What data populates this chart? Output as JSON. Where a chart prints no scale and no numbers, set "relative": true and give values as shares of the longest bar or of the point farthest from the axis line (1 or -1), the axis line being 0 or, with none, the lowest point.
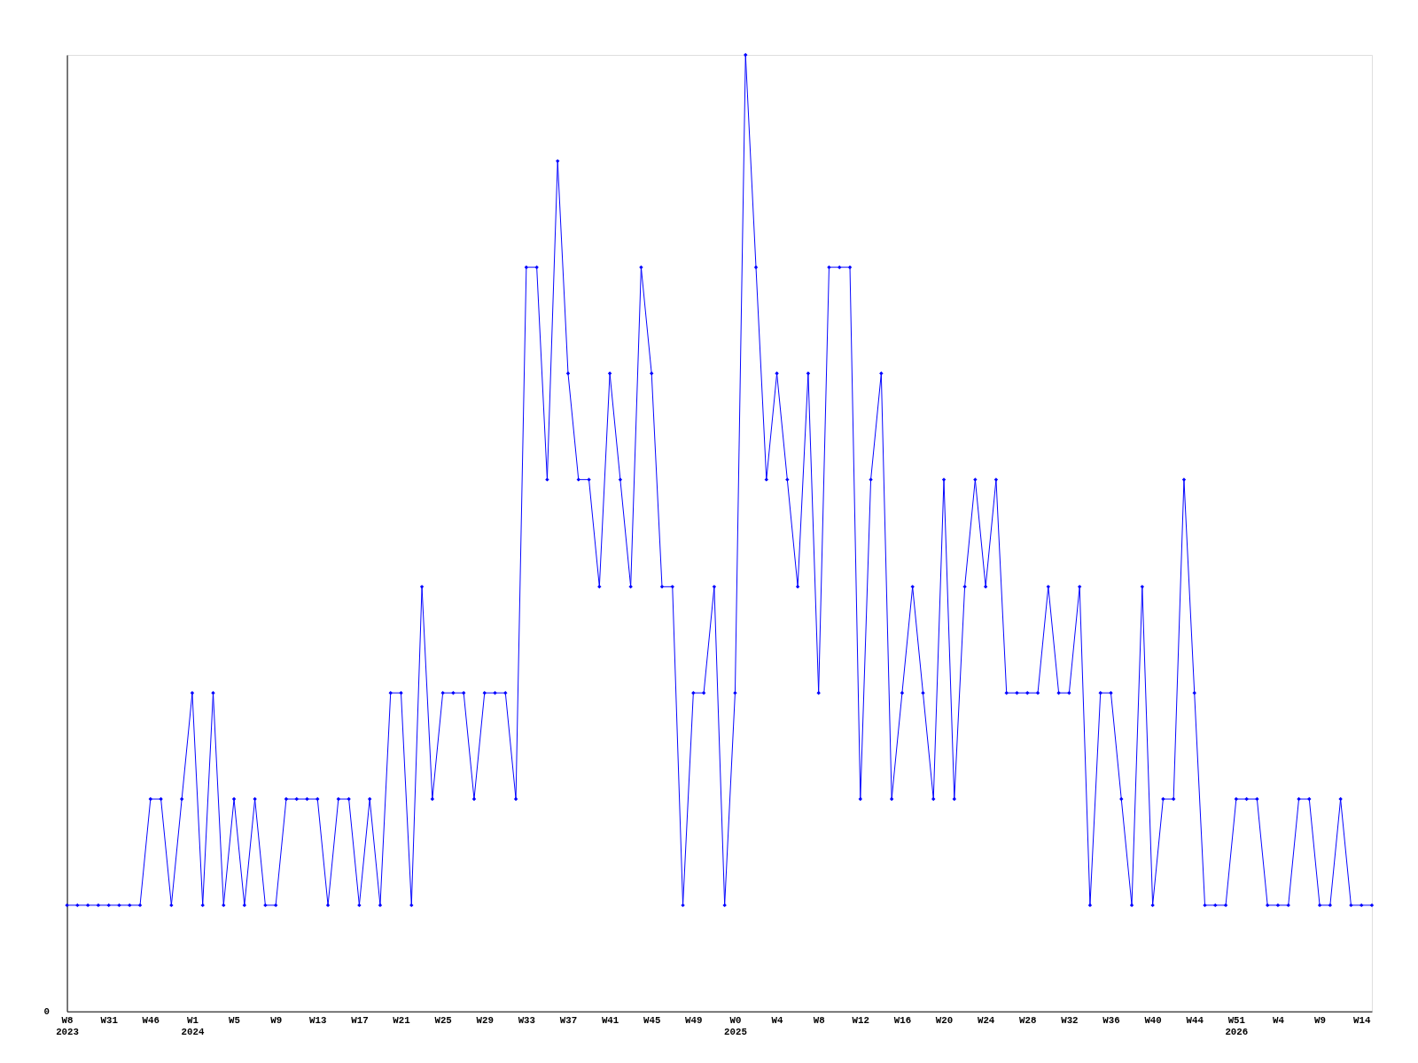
{
  "chart_data": {
    "type": "line",
    "relative": true,
    "marker": "diamond",
    "line_style": "solid",
    "grid": false,
    "categories": [
      "W8\n2023",
      null,
      null,
      null,
      "W31",
      null,
      null,
      null,
      "W46",
      null,
      null,
      null,
      "W1\n2024",
      null,
      null,
      null,
      "W5",
      null,
      null,
      null,
      "W9",
      null,
      null,
      null,
      "W13",
      null,
      null,
      null,
      "W17",
      null,
      null,
      null,
      "W21",
      null,
      null,
      null,
      "W25",
      null,
      null,
      null,
      "W29",
      null,
      null,
      null,
      "W33",
      null,
      null,
      null,
      "W37",
      null,
      null,
      null,
      "W41",
      null,
      null,
      null,
      "W45",
      null,
      null,
      null,
      "W49",
      null,
      null,
      null,
      "W0\n2025",
      null,
      null,
      null,
      "W4",
      null,
      null,
      null,
      "W8",
      null,
      null,
      null,
      "W12",
      null,
      null,
      null,
      "W16",
      null,
      null,
      null,
      "W20",
      null,
      null,
      null,
      "W24",
      null,
      null,
      null,
      "W28",
      null,
      null,
      null,
      "W32",
      null,
      null,
      null,
      "W36",
      null,
      null,
      null,
      "W40",
      null,
      null,
      null,
      "W44",
      null,
      null,
      null,
      "W51\n2026",
      null,
      null,
      null,
      "W4",
      null,
      null,
      null,
      "W9",
      null,
      null,
      null,
      "W14",
      null
    ],
    "series": [
      {
        "color": "#0000ff",
        "values": [
          0.111,
          0.111,
          0.111,
          0.111,
          0.111,
          0.111,
          0.111,
          0.111,
          0.222,
          0.222,
          0.111,
          0.222,
          0.333,
          0.111,
          0.333,
          0.111,
          0.222,
          0.111,
          0.222,
          0.111,
          0.111,
          0.222,
          0.222,
          0.222,
          0.222,
          0.111,
          0.222,
          0.222,
          0.111,
          0.222,
          0.111,
          0.333,
          0.333,
          0.111,
          0.444,
          0.222,
          0.333,
          0.333,
          0.333,
          0.222,
          0.333,
          0.333,
          0.333,
          0.222,
          0.778,
          0.778,
          0.556,
          0.889,
          0.667,
          0.556,
          0.556,
          0.444,
          0.667,
          0.556,
          0.444,
          0.778,
          0.667,
          0.444,
          0.444,
          0.111,
          0.333,
          0.333,
          0.444,
          0.111,
          0.333,
          1,
          0.778,
          0.556,
          0.667,
          0.556,
          0.444,
          0.667,
          0.333,
          0.778,
          0.778,
          0.778,
          0.222,
          0.556,
          0.667,
          0.222,
          0.333,
          0.444,
          0.333,
          0.222,
          0.556,
          0.222,
          0.444,
          0.556,
          0.444,
          0.556,
          0.333,
          0.333,
          0.333,
          0.333,
          0.444,
          0.333,
          0.333,
          0.444,
          0.111,
          0.333,
          0.333,
          0.222,
          0.111,
          0.444,
          0.111,
          0.222,
          0.222,
          0.556,
          0.333,
          0.111,
          0.111,
          0.111,
          0.222,
          0.222,
          0.222,
          0.111,
          0.111,
          0.111,
          0.222,
          0.222,
          0.111,
          0.111,
          0.222,
          0.111,
          0.111,
          0.111
        ]
      }
    ],
    "annotations": [
      "0"
    ]
  }
}
